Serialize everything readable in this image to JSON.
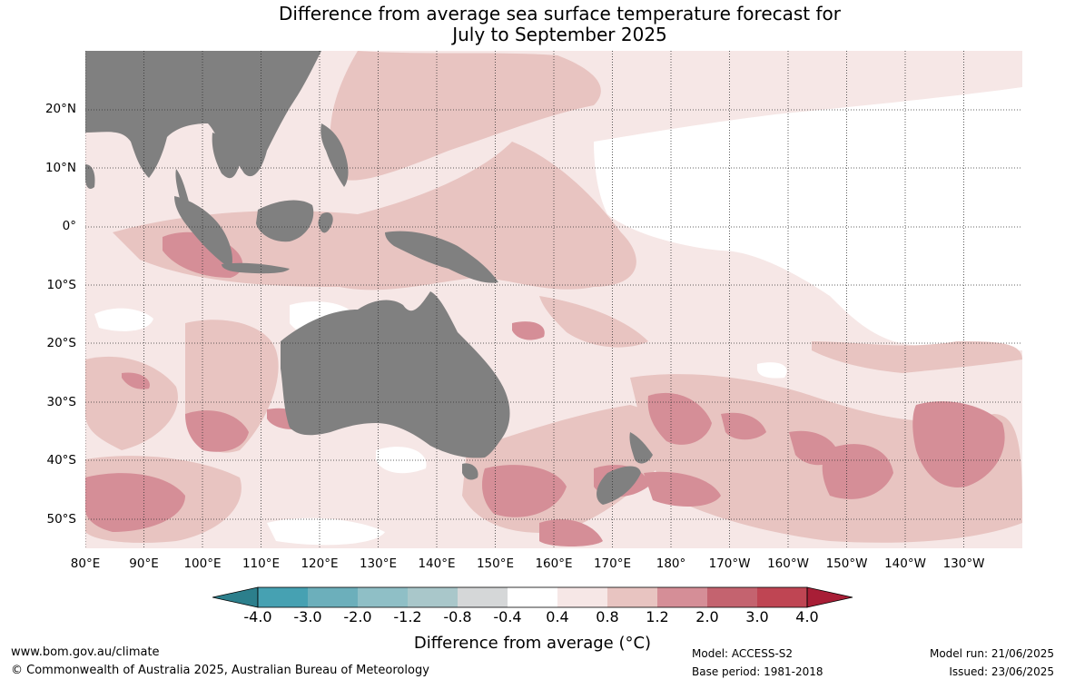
{
  "title": {
    "line1": "Difference from average sea surface temperature forecast for",
    "line2": "July to September 2025"
  },
  "map": {
    "lat_labels": [
      "20°N",
      "10°N",
      "0°",
      "10°S",
      "20°S",
      "30°S",
      "40°S",
      "50°S"
    ],
    "lon_labels": [
      "80°E",
      "90°E",
      "100°E",
      "110°E",
      "120°E",
      "130°E",
      "140°E",
      "150°E",
      "160°E",
      "170°E",
      "180°",
      "170°W",
      "160°W",
      "150°W",
      "140°W",
      "130°W"
    ],
    "land_color": "#808080",
    "ocean_neutral_color": "#ffffff",
    "gridlines": "dotted"
  },
  "colorbar": {
    "tick_labels": [
      "-4.0",
      "-3.0",
      "-2.0",
      "-1.2",
      "-0.8",
      "-0.4",
      "0.4",
      "0.8",
      "1.2",
      "2.0",
      "3.0",
      "4.0"
    ],
    "colors": [
      "#2c7f8c",
      "#46a1b2",
      "#6cafbb",
      "#8fbfc6",
      "#a9c7ca",
      "#d5d7d8",
      "#ffffff",
      "#f6e7e6",
      "#e8c4c1",
      "#d58e97",
      "#c4636f",
      "#bf4553",
      "#a81e36"
    ],
    "title": "Difference from average (°C)"
  },
  "footer": {
    "website": "www.bom.gov.au/climate",
    "copyright": "© Commonwealth of Australia 2025, Australian Bureau of Meteorology",
    "model": "Model: ACCESS-S2",
    "base_period": "Base period: 1981-2018",
    "model_run": "Model run: 21/06/2025",
    "issued": "Issued: 23/06/2025"
  }
}
